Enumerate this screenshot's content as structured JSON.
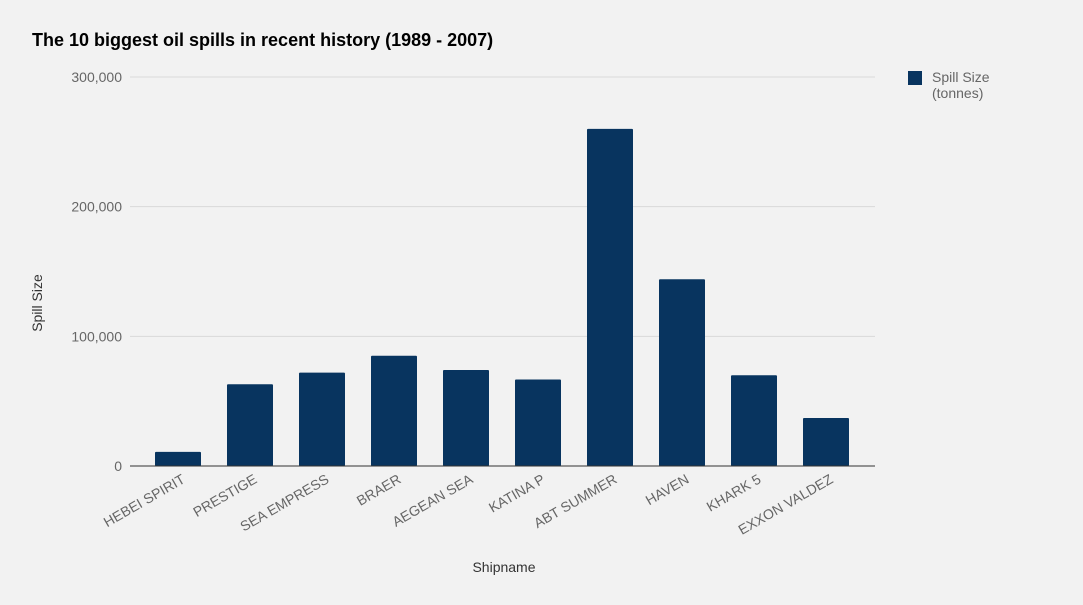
{
  "chart_data": {
    "type": "bar",
    "title": "The 10 biggest oil spills in recent history (1989 - 2007)",
    "xlabel": "Shipname",
    "ylabel": "Spill Size",
    "ylim": [
      0,
      300000
    ],
    "yticks": [
      "0",
      "100,000",
      "200,000",
      "300,000"
    ],
    "ytick_values": [
      0,
      100000,
      200000,
      300000
    ],
    "grid": true,
    "legend_position": "top-right",
    "categories": [
      "HEBEI SPIRIT",
      "PRESTIGE",
      "SEA EMPRESS",
      "BRAER",
      "AEGEAN SEA",
      "KATINA P",
      "ABT SUMMER",
      "HAVEN",
      "KHARK 5",
      "EXXON VALDEZ"
    ],
    "series": [
      {
        "name": "Spill Size (tonnes)",
        "legend_lines": [
          "Spill Size",
          "(tonnes)"
        ],
        "color": "#08345f",
        "values": [
          10900,
          63000,
          72000,
          85000,
          74000,
          66700,
          260000,
          144000,
          70000,
          37000
        ]
      }
    ]
  }
}
